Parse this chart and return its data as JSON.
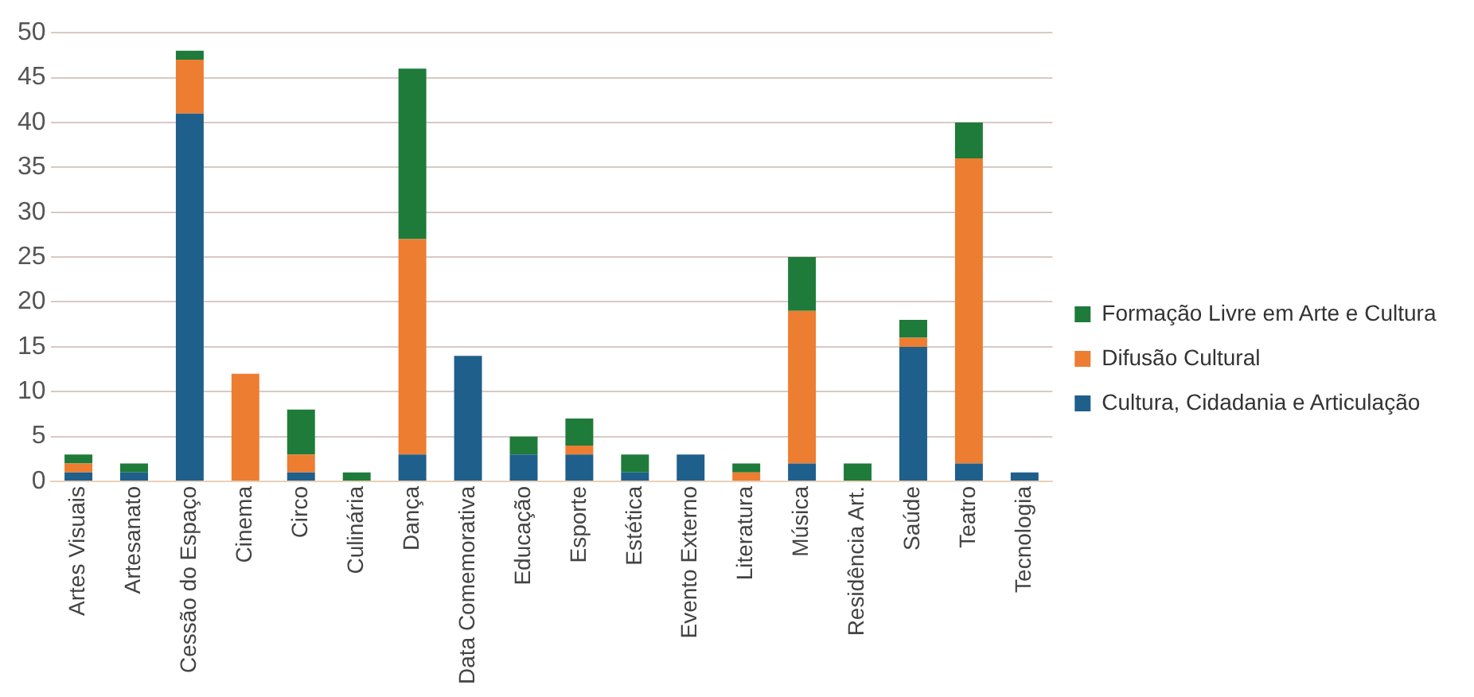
{
  "chart_data": {
    "type": "bar",
    "stacked": true,
    "categories": [
      "Artes Visuais",
      "Artesanato",
      "Cessão do Espaço",
      "Cinema",
      "Circo",
      "Culinária",
      "Dança",
      "Data Comemorativa",
      "Educação",
      "Esporte",
      "Estética",
      "Evento Externo",
      "Literatura",
      "Música",
      "Residência Art.",
      "Saúde",
      "Teatro",
      "Tecnologia"
    ],
    "series": [
      {
        "name": "Cultura, Cidadania e Articulação",
        "color": "#1f5f8b",
        "values": [
          1,
          1,
          41,
          0,
          1,
          0,
          3,
          14,
          3,
          3,
          1,
          3,
          0,
          2,
          0,
          15,
          2,
          1
        ]
      },
      {
        "name": "Difusão Cultural",
        "color": "#ed7d31",
        "values": [
          1,
          0,
          6,
          12,
          2,
          0,
          24,
          0,
          0,
          1,
          0,
          0,
          1,
          17,
          0,
          1,
          34,
          0
        ]
      },
      {
        "name": "Formação Livre em Arte e Cultura",
        "color": "#1e7b3a",
        "values": [
          1,
          1,
          1,
          0,
          5,
          1,
          19,
          0,
          2,
          3,
          2,
          0,
          1,
          6,
          2,
          2,
          4,
          0
        ]
      }
    ],
    "ylim": [
      0,
      50
    ],
    "yticks": [
      0,
      5,
      10,
      15,
      20,
      25,
      30,
      35,
      40,
      45,
      50
    ],
    "grid": "y",
    "legend": "right"
  }
}
